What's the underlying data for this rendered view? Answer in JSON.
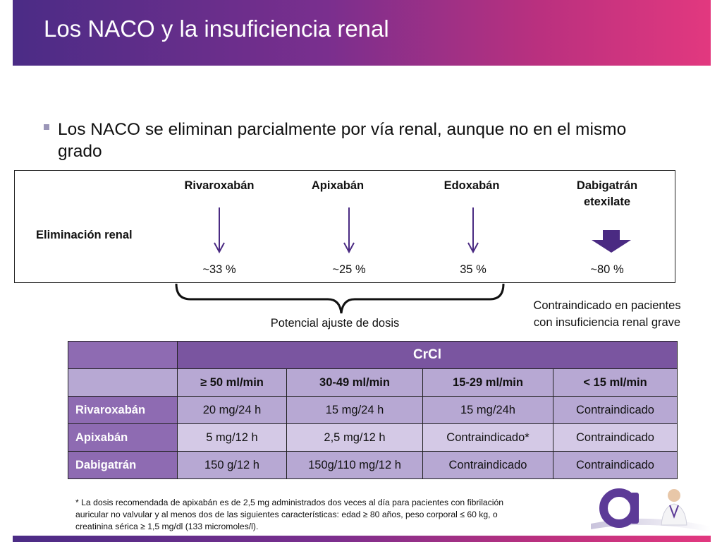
{
  "header": {
    "title": "Los NACO y la insuficiencia renal"
  },
  "bullet": {
    "text": "Los NACO se eliminan parcialmente por vía renal, aunque no en el mismo grado"
  },
  "elimination": {
    "row_label": "Eliminación renal",
    "drugs": [
      {
        "name": "Rivaroxabán",
        "pct": "~33 %"
      },
      {
        "name": "Apixabán",
        "pct": "~25 %"
      },
      {
        "name": "Edoxabán",
        "pct": "35 %"
      },
      {
        "name_line1": "Dabigatrán",
        "name_line2": "etexilate",
        "pct": "~80 %"
      }
    ],
    "brace_note": "Potencial ajuste de dosis",
    "contra_note_line1": "Contraindicado en pacientes",
    "contra_note_line2": "con insuficiencia renal grave"
  },
  "table": {
    "group_header": "CrCl",
    "columns": [
      "≥ 50 ml/min",
      "30-49 ml/min",
      "15-29 ml/min",
      "< 15 ml/min"
    ],
    "rows": [
      {
        "drug": "Rivaroxabán",
        "values": [
          "20 mg/24 h",
          "15 mg/24 h",
          "15 mg/24h",
          "Contraindicado"
        ]
      },
      {
        "drug": "Apixabán",
        "values": [
          "5 mg/12 h",
          "2,5 mg/12 h",
          "Contraindicado*",
          "Contraindicado"
        ]
      },
      {
        "drug": "Dabigatrán",
        "values": [
          "150 g/12 h",
          "150g/110 mg/12 h",
          "Contraindicado",
          "Contraindicado"
        ]
      }
    ]
  },
  "footnote": {
    "line1": "* La dosis recomendada de apixabán es de 2,5 mg administrados dos veces al día para pacientes con fibrilación",
    "line2": "auricular no valvular y al menos dos de las siguientes características: edad ≥ 80 años, peso corporal ≤ 60 kg, o",
    "line3": "creatinina sérica ≥ 1,5 mg/dl (133 micromoles/l)."
  },
  "colors": {
    "header_gradient_start": "#4b2c86",
    "header_gradient_end": "#e2387f",
    "arrow": "#4a2a82",
    "table_header": "#7a55a0",
    "table_subheader": "#b7a8d3"
  },
  "icons": {
    "arrow": "down-arrow-icon",
    "logo": "logo-icon"
  }
}
